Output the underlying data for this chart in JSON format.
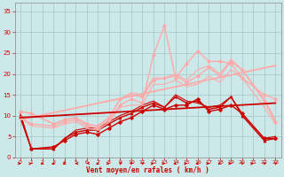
{
  "background_color": "#cce8e8",
  "grid_color": "#aacccc",
  "xlabel": "Vent moyen/en rafales ( km/h )",
  "xlabel_color": "#cc0000",
  "ylabel_color": "#cc0000",
  "yticks": [
    0,
    5,
    10,
    15,
    20,
    25,
    30,
    35
  ],
  "xticks": [
    0,
    1,
    2,
    3,
    4,
    5,
    6,
    7,
    8,
    9,
    10,
    11,
    12,
    13,
    14,
    15,
    16,
    17,
    18,
    19,
    20,
    21,
    22,
    23
  ],
  "xlim": [
    -0.5,
    23.5
  ],
  "ylim": [
    0,
    37
  ],
  "series": [
    {
      "x": [
        0,
        1,
        3,
        4,
        5,
        6,
        7,
        8,
        9,
        10,
        11,
        12,
        13,
        14,
        15,
        16,
        17,
        18,
        19,
        20,
        22,
        23
      ],
      "y": [
        9.5,
        2.0,
        2.5,
        4.0,
        5.5,
        6.0,
        5.5,
        7.0,
        8.5,
        9.5,
        11.0,
        12.5,
        11.5,
        12.5,
        12.5,
        14.0,
        11.0,
        11.5,
        12.5,
        10.5,
        4.5,
        4.5
      ],
      "color": "#cc0000",
      "linewidth": 1.0,
      "marker": "D",
      "markersize": 2.0
    },
    {
      "x": [
        0,
        1,
        3,
        4,
        5,
        6,
        7,
        8,
        9,
        10,
        11,
        12,
        13,
        14,
        15,
        16,
        17,
        18,
        19,
        20,
        22,
        23
      ],
      "y": [
        10.0,
        2.0,
        2.0,
        4.5,
        6.0,
        6.5,
        6.5,
        8.0,
        9.5,
        10.5,
        12.0,
        13.0,
        12.0,
        14.5,
        13.0,
        13.5,
        11.5,
        12.0,
        14.5,
        10.0,
        4.0,
        4.5
      ],
      "color": "#cc0000",
      "linewidth": 1.0,
      "marker": "^",
      "markersize": 2.0
    },
    {
      "x": [
        0,
        1,
        3,
        4,
        5,
        6,
        7,
        8,
        9,
        10,
        11,
        12,
        13,
        14,
        15,
        16,
        17,
        18,
        19,
        20,
        22,
        23
      ],
      "y": [
        10.5,
        2.0,
        2.0,
        4.5,
        6.5,
        7.0,
        7.0,
        8.5,
        10.0,
        11.0,
        12.5,
        13.5,
        12.0,
        15.0,
        13.5,
        13.0,
        12.0,
        12.5,
        14.5,
        10.5,
        4.5,
        5.0
      ],
      "color": "#cc0000",
      "linewidth": 0.8,
      "marker": null,
      "markersize": 0
    },
    {
      "x": [
        0,
        1,
        3,
        4,
        5,
        6,
        7,
        8,
        9,
        10,
        11,
        12,
        13,
        14,
        15,
        16,
        17,
        18,
        19,
        20,
        22,
        23
      ],
      "y": [
        11.0,
        10.5,
        8.0,
        9.0,
        9.5,
        8.0,
        7.5,
        9.5,
        14.0,
        15.0,
        14.5,
        18.5,
        19.0,
        19.5,
        18.0,
        19.5,
        21.5,
        19.5,
        23.0,
        21.0,
        13.5,
        8.5
      ],
      "color": "#ffaaaa",
      "linewidth": 1.0,
      "marker": "D",
      "markersize": 2.0
    },
    {
      "x": [
        0,
        1,
        3,
        4,
        5,
        6,
        7,
        8,
        9,
        10,
        11,
        12,
        13,
        14,
        15,
        16,
        17,
        18,
        19,
        20,
        22,
        23
      ],
      "y": [
        11.0,
        10.5,
        8.0,
        9.0,
        9.5,
        8.0,
        7.5,
        9.5,
        14.0,
        15.5,
        15.0,
        19.0,
        19.0,
        20.0,
        18.5,
        21.0,
        22.0,
        20.0,
        23.5,
        21.0,
        14.0,
        9.0
      ],
      "color": "#ffaaaa",
      "linewidth": 0.8,
      "marker": null,
      "markersize": 0
    },
    {
      "x": [
        0,
        1,
        3,
        4,
        5,
        6,
        7,
        8,
        9,
        10,
        11,
        12,
        13,
        14,
        15,
        16,
        17,
        18,
        19,
        20,
        22,
        23
      ],
      "y": [
        9.5,
        7.5,
        7.0,
        8.0,
        8.5,
        7.0,
        6.5,
        8.5,
        12.0,
        12.5,
        12.5,
        17.5,
        17.5,
        18.5,
        17.0,
        17.5,
        19.5,
        18.0,
        21.0,
        19.0,
        12.0,
        8.0
      ],
      "color": "#ffaaaa",
      "linewidth": 0.8,
      "marker": null,
      "markersize": 0
    },
    {
      "x": [
        0,
        1,
        3,
        4,
        5,
        6,
        7,
        8,
        9,
        10,
        11,
        12,
        13,
        14,
        15,
        16,
        17,
        18,
        19,
        20,
        22,
        23
      ],
      "y": [
        9.5,
        8.0,
        7.5,
        8.5,
        9.0,
        7.5,
        7.0,
        9.0,
        12.5,
        14.0,
        13.0,
        24.5,
        31.5,
        19.0,
        22.5,
        25.5,
        23.0,
        23.0,
        22.5,
        19.0,
        15.0,
        14.0
      ],
      "color": "#ffaaaa",
      "linewidth": 1.0,
      "marker": "D",
      "markersize": 2.0
    },
    {
      "x": [
        0,
        23
      ],
      "y": [
        9.0,
        22.0
      ],
      "color": "#ffaaaa",
      "linewidth": 1.3,
      "marker": null,
      "markersize": 0
    },
    {
      "x": [
        0,
        23
      ],
      "y": [
        9.5,
        13.0
      ],
      "color": "#cc0000",
      "linewidth": 1.3,
      "marker": null,
      "markersize": 0
    }
  ],
  "wind_directions": [
    90,
    80,
    225,
    225,
    225,
    270,
    250,
    225,
    90,
    45,
    45,
    45,
    80,
    90,
    225,
    80,
    225,
    90,
    225,
    90,
    45,
    80,
    45,
    45
  ]
}
